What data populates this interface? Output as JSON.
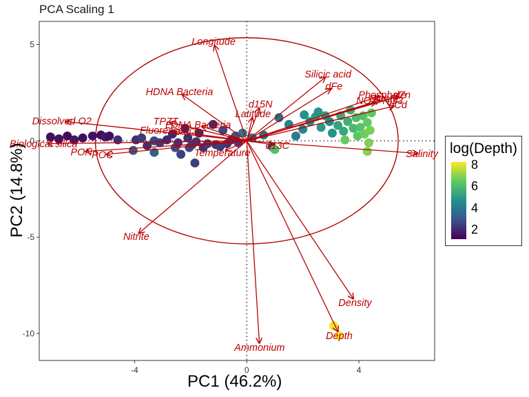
{
  "chart_data": {
    "type": "scatter",
    "title": "PCA Scaling 1",
    "xlabel": "PC1 (46.2%)",
    "ylabel": "PC2 (14.8%)",
    "xlim": [
      -7.4,
      6.7
    ],
    "ylim": [
      -11.4,
      6.2
    ],
    "x_ticks": [
      -4,
      0,
      4
    ],
    "y_ticks": [
      5,
      0,
      -5,
      -10
    ],
    "x_tick_labels": [
      "-4",
      "0",
      "4"
    ],
    "y_tick_labels": [
      "5",
      "0",
      "-5",
      "-10"
    ],
    "grid": false,
    "legend_position": "right",
    "legend": {
      "title": "log(Depth)",
      "tick_labels": [
        "8",
        "6",
        "4",
        "2"
      ],
      "tick_values": [
        8,
        6,
        4,
        2
      ],
      "range": [
        1.2,
        8.3
      ]
    },
    "colors": {
      "arrow": "#bb0000",
      "label": "#bb0000",
      "ellipse": "#b00000",
      "reference_line": "#333333",
      "scale_low": "#440154",
      "scale_high": "#fde725"
    },
    "ellipse": {
      "center": [
        0,
        0
      ],
      "rx": 5.4,
      "ry": 5.35
    },
    "loadings": [
      {
        "label": "Longitude",
        "x": -1.15,
        "y": 4.95
      },
      {
        "label": "Silicic acid",
        "x": 2.8,
        "y": 3.3
      },
      {
        "label": "dFe",
        "x": 3.0,
        "y": 2.7
      },
      {
        "label": "Phosphate",
        "x": 4.7,
        "y": 2.3
      },
      {
        "label": "dZn",
        "x": 5.4,
        "y": 2.3
      },
      {
        "label": "dCd",
        "x": 5.25,
        "y": 1.8
      },
      {
        "label": "Nitrate",
        "x": 4.75,
        "y": 2.1
      },
      {
        "label": "NO2+NO3",
        "x": 4.6,
        "y": 2.0
      },
      {
        "label": "Salinity",
        "x": 6.1,
        "y": -0.65
      },
      {
        "label": "d15N",
        "x": 0.45,
        "y": 1.7
      },
      {
        "label": "Latitude",
        "x": 0.2,
        "y": 1.2
      },
      {
        "label": "d13C",
        "x": 0.95,
        "y": -0.2
      },
      {
        "label": "Temperature",
        "x": -0.75,
        "y": -0.5
      },
      {
        "label": "HDNA Bacteria",
        "x": -2.3,
        "y": 2.4
      },
      {
        "label": "TPZT",
        "x": -2.75,
        "y": 0.95
      },
      {
        "label": "LDNA Bacteria",
        "x": -1.6,
        "y": 0.75
      },
      {
        "label": "Dissolved O2",
        "x": -6.45,
        "y": 1.0
      },
      {
        "label": "Biological silica",
        "x": -7.1,
        "y": -0.15
      },
      {
        "label": "PON",
        "x": -5.75,
        "y": -0.55
      },
      {
        "label": "POC",
        "x": -5.0,
        "y": -0.7
      },
      {
        "label": "Fluorescence",
        "x": -2.6,
        "y": 0.5
      },
      {
        "label": "Nitrite",
        "x": -3.85,
        "y": -4.8
      },
      {
        "label": "Ammonium",
        "x": 0.45,
        "y": -10.5
      },
      {
        "label": "Density",
        "x": 3.8,
        "y": -8.2
      },
      {
        "label": "Depth",
        "x": 3.25,
        "y": -9.9
      }
    ],
    "points": [
      {
        "x": -7.0,
        "y": 0.2,
        "depth": 1.5
      },
      {
        "x": -6.7,
        "y": 0.1,
        "depth": 1.6
      },
      {
        "x": -6.4,
        "y": 0.25,
        "depth": 1.4
      },
      {
        "x": -6.15,
        "y": 0.05,
        "depth": 1.7
      },
      {
        "x": -5.85,
        "y": 0.15,
        "depth": 1.5
      },
      {
        "x": -5.5,
        "y": 0.25,
        "depth": 1.6
      },
      {
        "x": -5.2,
        "y": 0.3,
        "depth": 1.4
      },
      {
        "x": -5.05,
        "y": 0.2,
        "depth": 1.8
      },
      {
        "x": -4.9,
        "y": 0.25,
        "depth": 1.5
      },
      {
        "x": -4.6,
        "y": 0.05,
        "depth": 2.2
      },
      {
        "x": -4.05,
        "y": -0.5,
        "depth": 3.2
      },
      {
        "x": -3.95,
        "y": 0.05,
        "depth": 2.3
      },
      {
        "x": -3.75,
        "y": 0.15,
        "depth": 2.5
      },
      {
        "x": -3.55,
        "y": -0.25,
        "depth": 2.2
      },
      {
        "x": -3.3,
        "y": -0.6,
        "depth": 3.4
      },
      {
        "x": -3.3,
        "y": 0.0,
        "depth": 2.7
      },
      {
        "x": -3.1,
        "y": -0.1,
        "depth": 2.4
      },
      {
        "x": -2.85,
        "y": 0.05,
        "depth": 2.1
      },
      {
        "x": -2.65,
        "y": 0.35,
        "depth": 2.0
      },
      {
        "x": -2.55,
        "y": -0.35,
        "depth": 2.9
      },
      {
        "x": -2.45,
        "y": -0.1,
        "depth": 2.3
      },
      {
        "x": -2.35,
        "y": -0.7,
        "depth": 2.6
      },
      {
        "x": -2.2,
        "y": 0.65,
        "depth": 2.1
      },
      {
        "x": -2.1,
        "y": 0.15,
        "depth": 2.2
      },
      {
        "x": -2.05,
        "y": -0.35,
        "depth": 2.8
      },
      {
        "x": -1.95,
        "y": -0.2,
        "depth": 2.5
      },
      {
        "x": -1.85,
        "y": -1.15,
        "depth": 2.5
      },
      {
        "x": -1.8,
        "y": -0.05,
        "depth": 2.4
      },
      {
        "x": -1.7,
        "y": 0.4,
        "depth": 2.1
      },
      {
        "x": -1.55,
        "y": -0.35,
        "depth": 2.3
      },
      {
        "x": -1.4,
        "y": -0.15,
        "depth": 2.6
      },
      {
        "x": -1.2,
        "y": 0.85,
        "depth": 2.2
      },
      {
        "x": -1.1,
        "y": -0.2,
        "depth": 2.3
      },
      {
        "x": -0.95,
        "y": -0.3,
        "depth": 2.5
      },
      {
        "x": -0.85,
        "y": 0.55,
        "depth": 2.8
      },
      {
        "x": -0.7,
        "y": -0.15,
        "depth": 2.4
      },
      {
        "x": -0.55,
        "y": 0.05,
        "depth": 2.3
      },
      {
        "x": -0.4,
        "y": 0.25,
        "depth": 3.0
      },
      {
        "x": -0.3,
        "y": -0.1,
        "depth": 2.6
      },
      {
        "x": -0.15,
        "y": 0.4,
        "depth": 4.0
      },
      {
        "x": 0.2,
        "y": 0.15,
        "depth": 3.8
      },
      {
        "x": 0.6,
        "y": 0.3,
        "depth": 3.9
      },
      {
        "x": 0.9,
        "y": -0.3,
        "depth": 3.6
      },
      {
        "x": 1.15,
        "y": 1.2,
        "depth": 3.8
      },
      {
        "x": 1.0,
        "y": -0.45,
        "depth": 6.2
      },
      {
        "x": 1.5,
        "y": 0.85,
        "depth": 4.4
      },
      {
        "x": 1.75,
        "y": 0.25,
        "depth": 4.2
      },
      {
        "x": 2.0,
        "y": 0.6,
        "depth": 4.5
      },
      {
        "x": 2.05,
        "y": 1.35,
        "depth": 4.8
      },
      {
        "x": 2.25,
        "y": 1.0,
        "depth": 4.7
      },
      {
        "x": 2.45,
        "y": 1.25,
        "depth": 5.1
      },
      {
        "x": 2.55,
        "y": 1.5,
        "depth": 4.9
      },
      {
        "x": 2.65,
        "y": 0.7,
        "depth": 5.0
      },
      {
        "x": 2.8,
        "y": 1.3,
        "depth": 5.2
      },
      {
        "x": 2.95,
        "y": 1.0,
        "depth": 4.6
      },
      {
        "x": 3.05,
        "y": 0.4,
        "depth": 4.9
      },
      {
        "x": 3.25,
        "y": 0.8,
        "depth": 5.3
      },
      {
        "x": 3.35,
        "y": 1.3,
        "depth": 5.5
      },
      {
        "x": 3.45,
        "y": 0.5,
        "depth": 5.4
      },
      {
        "x": 3.6,
        "y": 1.0,
        "depth": 5.7
      },
      {
        "x": 3.7,
        "y": 1.6,
        "depth": 5.6
      },
      {
        "x": 3.8,
        "y": 0.65,
        "depth": 6.0
      },
      {
        "x": 3.9,
        "y": 1.2,
        "depth": 6.1
      },
      {
        "x": 3.95,
        "y": 0.25,
        "depth": 6.4
      },
      {
        "x": 4.05,
        "y": 0.7,
        "depth": 6.3
      },
      {
        "x": 4.15,
        "y": 1.3,
        "depth": 6.2
      },
      {
        "x": 4.2,
        "y": 0.35,
        "depth": 6.7
      },
      {
        "x": 4.3,
        "y": 0.95,
        "depth": 6.6
      },
      {
        "x": 4.35,
        "y": -0.1,
        "depth": 6.9
      },
      {
        "x": 4.4,
        "y": 0.55,
        "depth": 6.8
      },
      {
        "x": 4.45,
        "y": 1.45,
        "depth": 6.5
      },
      {
        "x": 4.3,
        "y": -0.55,
        "depth": 7.0
      },
      {
        "x": 3.5,
        "y": 0.05,
        "depth": 6.6
      },
      {
        "x": 3.1,
        "y": -9.6,
        "depth": 8.2
      },
      {
        "x": 3.3,
        "y": -10.1,
        "depth": 8.3
      }
    ]
  }
}
